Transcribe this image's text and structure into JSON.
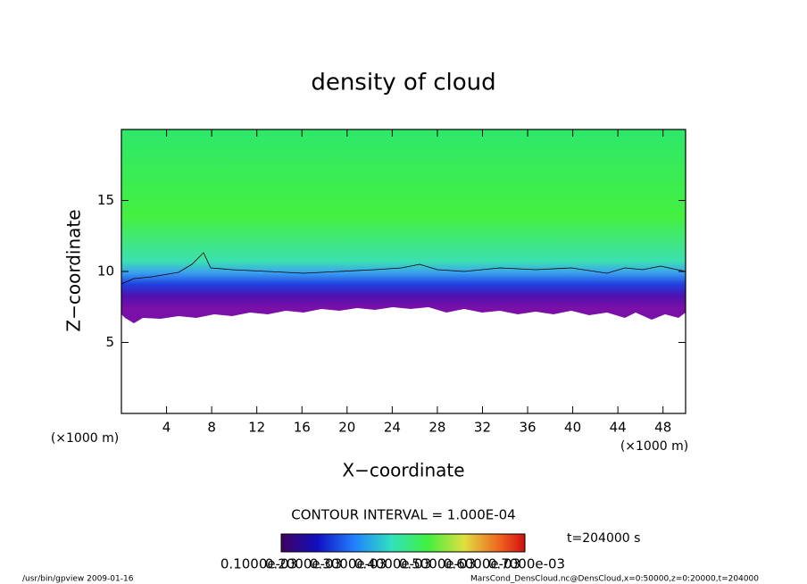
{
  "chart_data": {
    "type": "contour",
    "title": "density of cloud",
    "x_label": "X−coordinate",
    "y_label": "Z−coordinate",
    "x_unit": "(×1000 m)",
    "y_unit": "(×1000 m)",
    "xlim": [
      0,
      50
    ],
    "xticks": [
      4,
      8,
      12,
      16,
      20,
      24,
      28,
      32,
      36,
      40,
      44,
      48
    ],
    "ylim": [
      0,
      20
    ],
    "yticks": [
      5,
      10,
      15
    ],
    "contour_interval": "CONTOUR INTERVAL = 1.000E-04",
    "time": "t=204000 s",
    "colorbar_labels": [
      "0.1000e-03",
      "0.2000e-03",
      "0.3000e-03",
      "0.4000e-03",
      "0.5000e-03",
      "0.6000e-03",
      "0.7000e-03"
    ],
    "footer_left": "/usr/bin/gpview   2009-01-16",
    "footer_right": "MarsCond_DensCloud.nc@DensCloud,x=0:50000,z=0:20000,t=204000"
  }
}
